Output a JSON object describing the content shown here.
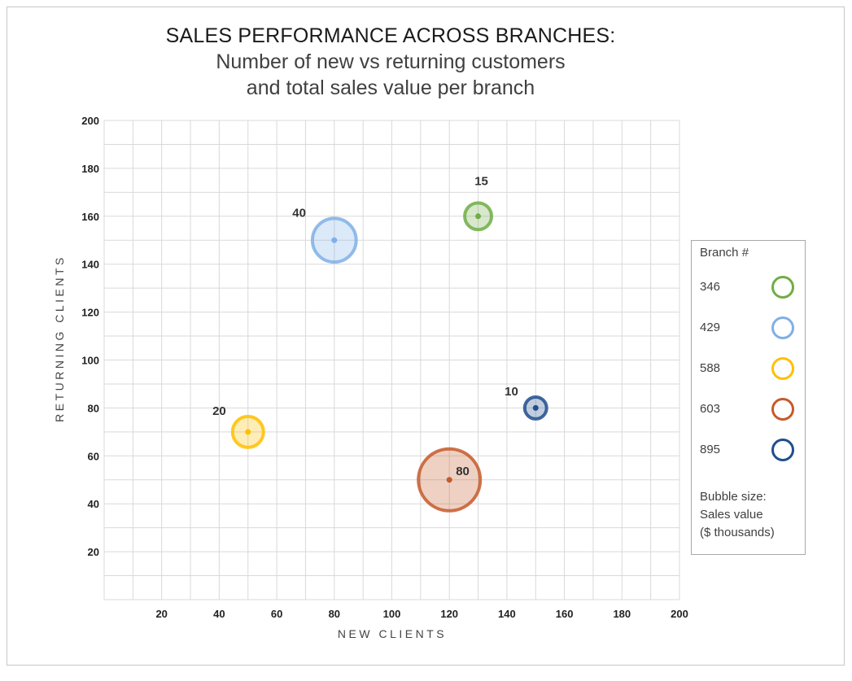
{
  "chart_data": {
    "type": "scatter",
    "title": "SALES PERFORMANCE ACROSS BRANCHES:",
    "subtitle_lines": [
      "Number of new vs returning customers",
      "and total sales value per branch"
    ],
    "xlabel": "NEW CLIENTS",
    "ylabel": "RETURNING CLIENTS",
    "xlim": [
      0,
      200
    ],
    "ylim": [
      0,
      200
    ],
    "x_ticks": [
      20,
      40,
      60,
      80,
      100,
      120,
      140,
      160,
      180,
      200
    ],
    "y_ticks": [
      20,
      40,
      60,
      80,
      100,
      120,
      140,
      160,
      180,
      200
    ],
    "grid": true,
    "legend_position": "right",
    "legend_title": "Branch #",
    "legend_note": [
      "Bubble size:",
      "Sales value",
      "($ thousands)"
    ],
    "series": [
      {
        "name": "346",
        "x": 130,
        "y": 160,
        "size": 15,
        "label": "15",
        "color": "#70ad47"
      },
      {
        "name": "429",
        "x": 80,
        "y": 150,
        "size": 40,
        "label": "40",
        "color": "#7fb0e6"
      },
      {
        "name": "588",
        "x": 50,
        "y": 70,
        "size": 20,
        "label": "20",
        "color": "#ffc000"
      },
      {
        "name": "603",
        "x": 120,
        "y": 50,
        "size": 80,
        "label": "80",
        "color": "#c55a2b"
      },
      {
        "name": "895",
        "x": 150,
        "y": 80,
        "size": 10,
        "label": "10",
        "color": "#1f4e8c"
      }
    ]
  }
}
